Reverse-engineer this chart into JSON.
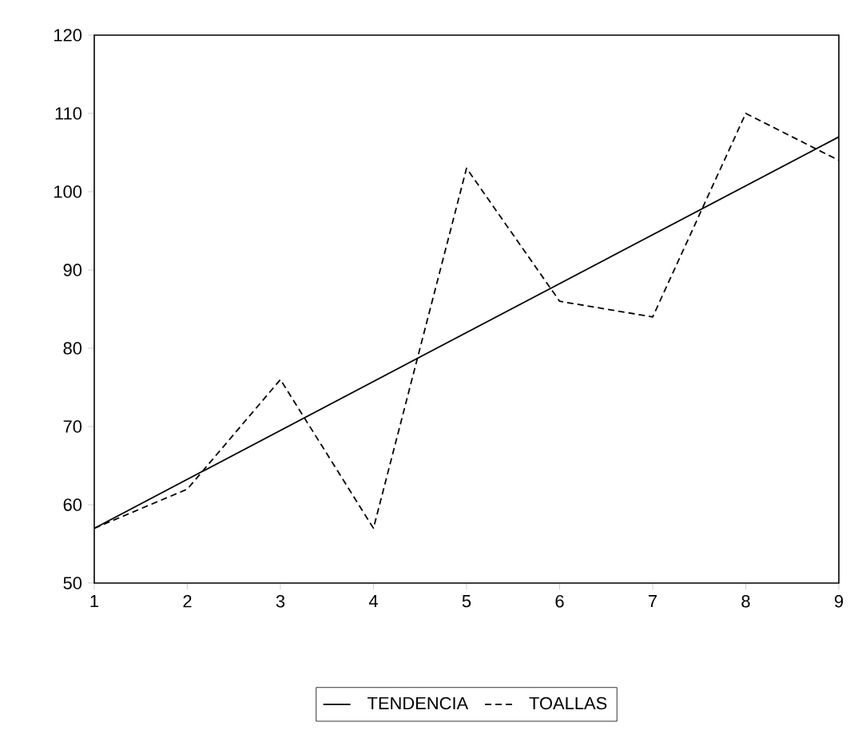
{
  "chart_data": {
    "type": "line",
    "x": [
      1,
      2,
      3,
      4,
      5,
      6,
      7,
      8,
      9
    ],
    "series": [
      {
        "name": "TENDENCIA",
        "color": "#000000",
        "line_style": "solid",
        "x": [
          1,
          9
        ],
        "values": [
          57,
          107
        ]
      },
      {
        "name": "TOALLAS",
        "color": "#000000",
        "line_style": "dashed",
        "values": [
          57,
          62,
          76,
          57,
          103,
          86,
          84,
          110,
          104
        ]
      }
    ],
    "xlim": [
      1,
      9
    ],
    "xticks": [
      1,
      2,
      3,
      4,
      5,
      6,
      7,
      8,
      9
    ],
    "ylim": [
      50,
      120
    ],
    "yticks": [
      50,
      60,
      70,
      80,
      90,
      100,
      110,
      120
    ],
    "legend": "bottom",
    "marker": "none"
  }
}
